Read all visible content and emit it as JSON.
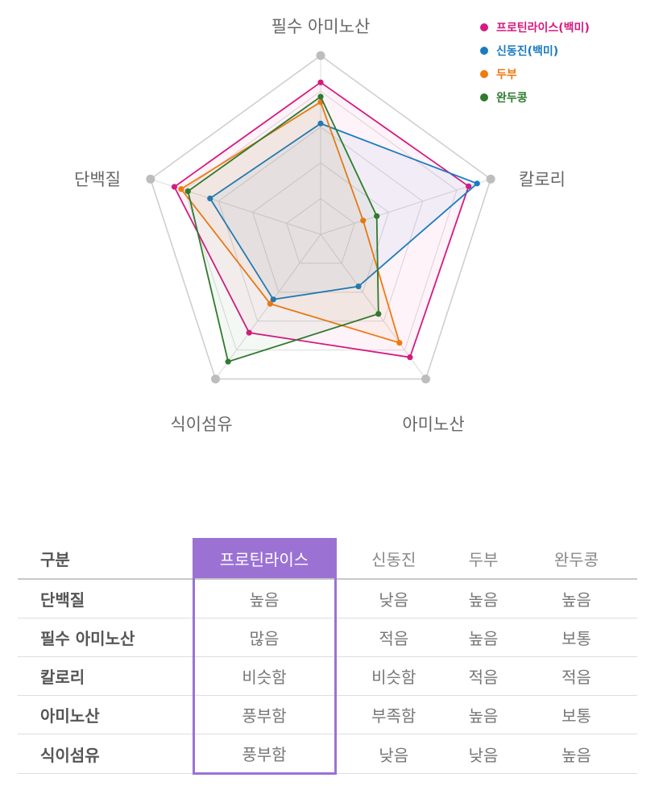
{
  "chart_data": {
    "type": "radar",
    "axes": [
      "필수 아미노산",
      "칼로리",
      "아미노산",
      "식이섬유",
      "단백질"
    ],
    "range": [
      0,
      1
    ],
    "grid_levels": 5,
    "series": [
      {
        "name": "프로틴라이스(백미)",
        "color": "#d61a7f",
        "values": [
          0.85,
          0.87,
          0.85,
          0.68,
          0.86
        ]
      },
      {
        "name": "신동진(백미)",
        "color": "#1a7bc0",
        "values": [
          0.62,
          0.92,
          0.36,
          0.45,
          0.65
        ]
      },
      {
        "name": "두부",
        "color": "#f07a10",
        "values": [
          0.74,
          0.25,
          0.75,
          0.48,
          0.82
        ]
      },
      {
        "name": "완두콩",
        "color": "#2f7a2f",
        "values": [
          0.77,
          0.33,
          0.55,
          0.88,
          0.78
        ]
      }
    ]
  },
  "table": {
    "headers": [
      "구분",
      "프로틴라이스",
      "신동진",
      "두부",
      "완두콩"
    ],
    "highlight_color": "#9b72d4",
    "rows": [
      {
        "label": "단백질",
        "cells": [
          "높음",
          "낮음",
          "높음",
          "높음"
        ]
      },
      {
        "label": "필수 아미노산",
        "cells": [
          "많음",
          "적음",
          "높음",
          "보통"
        ]
      },
      {
        "label": "칼로리",
        "cells": [
          "비슷함",
          "비슷함",
          "적음",
          "적음"
        ]
      },
      {
        "label": "아미노산",
        "cells": [
          "풍부함",
          "부족함",
          "높음",
          "보통"
        ]
      },
      {
        "label": "식이섬유",
        "cells": [
          "풍부함",
          "낮음",
          "낮음",
          "높음"
        ]
      }
    ]
  }
}
